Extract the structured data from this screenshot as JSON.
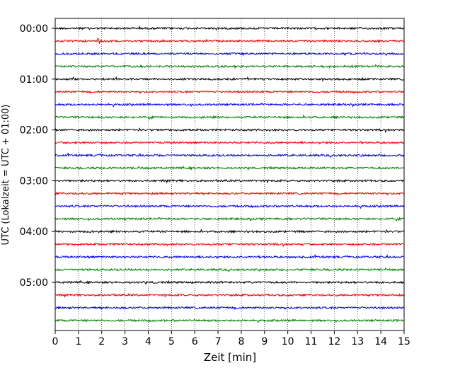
{
  "chart_data": {
    "type": "line",
    "title": "",
    "xlabel": "Zeit  [min]",
    "ylabel": "UTC (Lokalzeit = UTC + 01:00)",
    "xlim": [
      0,
      15
    ],
    "x_ticks": [
      "0",
      "1",
      "2",
      "3",
      "4",
      "5",
      "6",
      "7",
      "8",
      "9",
      "10",
      "11",
      "12",
      "13",
      "14",
      "15"
    ],
    "y_tick_labels": [
      "00:00",
      "01:00",
      "02:00",
      "03:00",
      "04:00",
      "05:00"
    ],
    "grid": "vertical dotted lines at each minute",
    "trace_interval_minutes": 15,
    "trace_colors": [
      "#000000",
      "#ff0000",
      "#0000ff",
      "#008000"
    ],
    "traces": [
      {
        "start": "00:00",
        "color": "#000000"
      },
      {
        "start": "00:15",
        "color": "#ff0000",
        "event_at_minute": 1.85
      },
      {
        "start": "00:30",
        "color": "#0000ff"
      },
      {
        "start": "00:45",
        "color": "#008000"
      },
      {
        "start": "01:00",
        "color": "#000000"
      },
      {
        "start": "01:15",
        "color": "#ff0000"
      },
      {
        "start": "01:30",
        "color": "#0000ff"
      },
      {
        "start": "01:45",
        "color": "#008000"
      },
      {
        "start": "02:00",
        "color": "#000000"
      },
      {
        "start": "02:15",
        "color": "#ff0000"
      },
      {
        "start": "02:30",
        "color": "#0000ff"
      },
      {
        "start": "02:45",
        "color": "#008000"
      },
      {
        "start": "03:00",
        "color": "#000000"
      },
      {
        "start": "03:15",
        "color": "#ff0000"
      },
      {
        "start": "03:30",
        "color": "#0000ff"
      },
      {
        "start": "03:45",
        "color": "#008000"
      },
      {
        "start": "04:00",
        "color": "#000000"
      },
      {
        "start": "04:15",
        "color": "#ff0000"
      },
      {
        "start": "04:30",
        "color": "#0000ff"
      },
      {
        "start": "04:45",
        "color": "#008000"
      },
      {
        "start": "05:00",
        "color": "#000000"
      },
      {
        "start": "05:15",
        "color": "#ff0000"
      },
      {
        "start": "05:30",
        "color": "#0000ff"
      },
      {
        "start": "05:45",
        "color": "#008000"
      }
    ]
  }
}
